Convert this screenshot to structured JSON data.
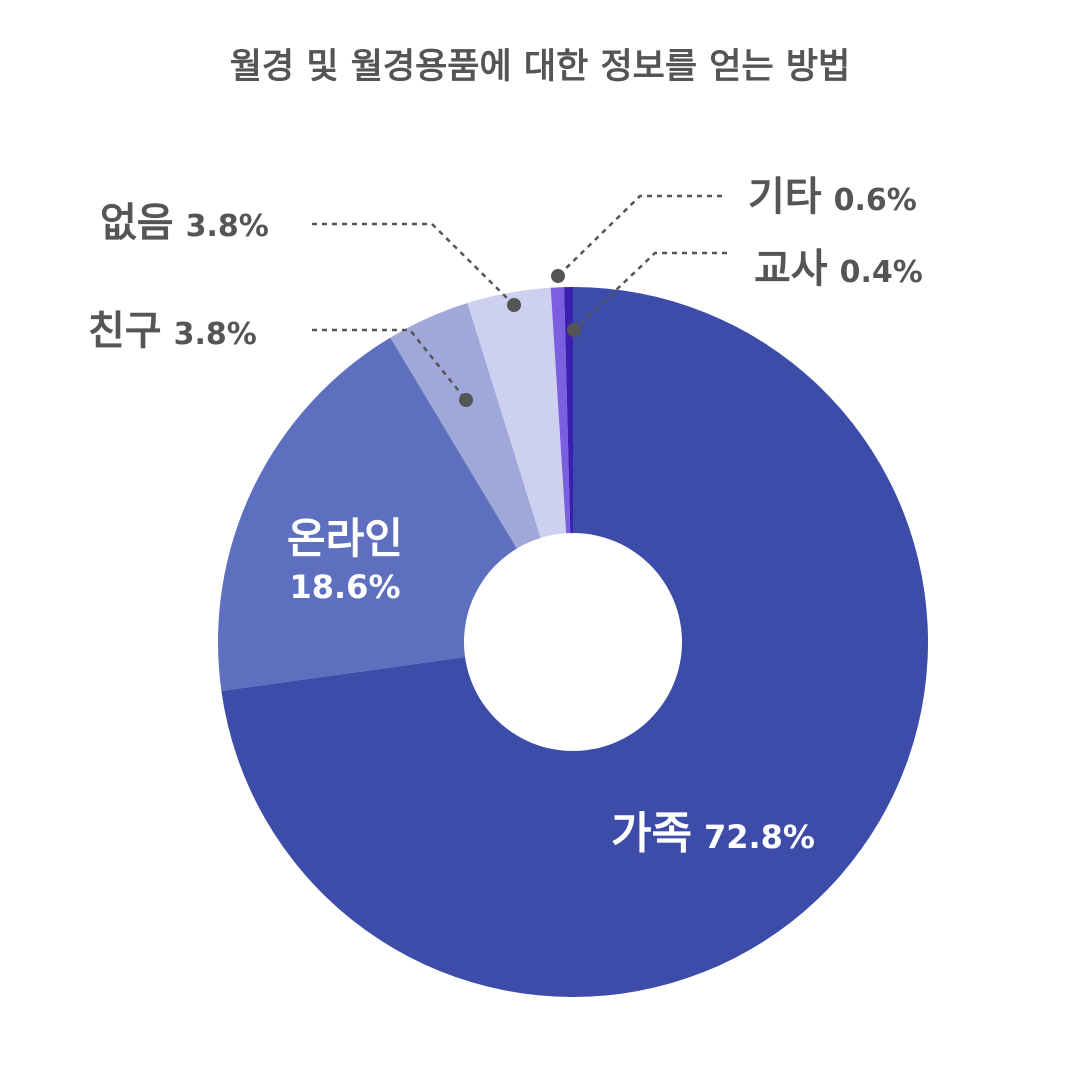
{
  "chart_data": {
    "type": "pie",
    "variant": "donut",
    "title": "월경 및 월경용품에 대한 정보를 얻는 방법",
    "slices": [
      {
        "name": "가족",
        "value": 72.8,
        "label": "72.8%",
        "color": "#3c4ca8"
      },
      {
        "name": "온라인",
        "value": 18.6,
        "label": "18.6%",
        "color": "#5e6fbf"
      },
      {
        "name": "친구",
        "value": 3.8,
        "label": "3.8%",
        "color": "#9fa8d8"
      },
      {
        "name": "없음",
        "value": 3.8,
        "label": "3.8%",
        "color": "#cdd1ef"
      },
      {
        "name": "기타",
        "value": 0.6,
        "label": "0.6%",
        "color": "#7b5fe0"
      },
      {
        "name": "교사",
        "value": 0.4,
        "label": "0.4%",
        "color": "#3a1fb0"
      }
    ],
    "label_colors": {
      "inside": "#ffffff",
      "outside": "#555555",
      "leader": "#555555"
    }
  }
}
